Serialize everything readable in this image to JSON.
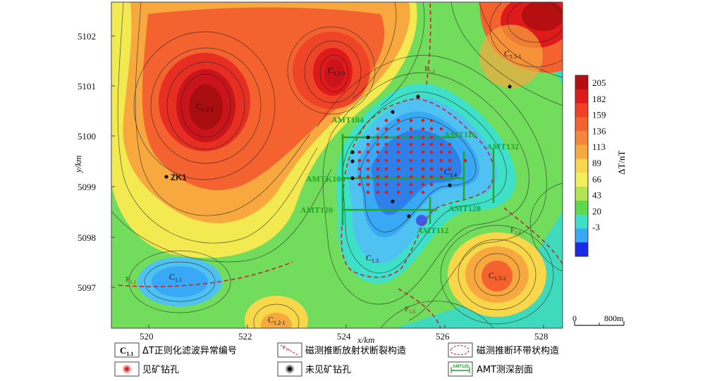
{
  "axes": {
    "x_label": "x/km",
    "y_label": "y/km",
    "x_ticks": [
      "520",
      "522",
      "524",
      "526",
      "528"
    ],
    "y_ticks": [
      "5102",
      "5101",
      "5100",
      "5099",
      "5098",
      "5097"
    ]
  },
  "colorbar": {
    "label": "ΔT/nT",
    "ticks": [
      "205",
      "182",
      "159",
      "136",
      "113",
      "89",
      "66",
      "43",
      "20",
      "-3"
    ],
    "colors": [
      "#b50f12",
      "#de1a1a",
      "#f23f25",
      "#f4632f",
      "#f6873a",
      "#f7a83f",
      "#f8d74a",
      "#f3ee5b",
      "#b2e551",
      "#5ed94a",
      "#3ee0c8",
      "#39a9f5",
      "#1a2ae6"
    ]
  },
  "anomalies": {
    "c122": "C",
    "c122_sub": "1.2-2",
    "c123": "C",
    "c123_sub": "1.2-3",
    "c151": "C",
    "c151_sub": "1.5-1",
    "c14": "C",
    "c14_sub": "1.4",
    "c13": "C",
    "c13_sub": "1.3",
    "c11": "C",
    "c11_sub": "1.1",
    "c121": "C",
    "c121_sub": "1.2-1",
    "c152": "C",
    "c152_sub": "1.5-2"
  },
  "faults": {
    "f12": "F",
    "f12_sub": "1.2",
    "f14": "F",
    "f14_sub": "1.4",
    "f11": "F",
    "f11_sub": "1.1",
    "f13": "F",
    "f13_sub": "1.3"
  },
  "drillhole": "ZK1",
  "amt": {
    "a104": "AMT104",
    "a116": "AMT116",
    "a132": "AMT132",
    "ak100": "AMTK100",
    "a120": "AMT120",
    "a128": "AMT128",
    "a112": "AMT112"
  },
  "scale": {
    "start": "0",
    "end": "800m"
  },
  "legend": {
    "anomaly_sym": "C",
    "anomaly_sym_sub": "1.1",
    "anomaly_text": "ΔT正则化滤波异常编号",
    "radial_text": "磁测推断放射状断裂构造",
    "ring_text": "磁测推断环带状构造",
    "found_text": "见矿钻孔",
    "notfound_text": "未见矿钻孔",
    "amt_text": "AMT测深剖面",
    "amt_icon": "AMT120",
    "fault_icon": "F",
    "fault_icon_sub": "1.1"
  }
}
